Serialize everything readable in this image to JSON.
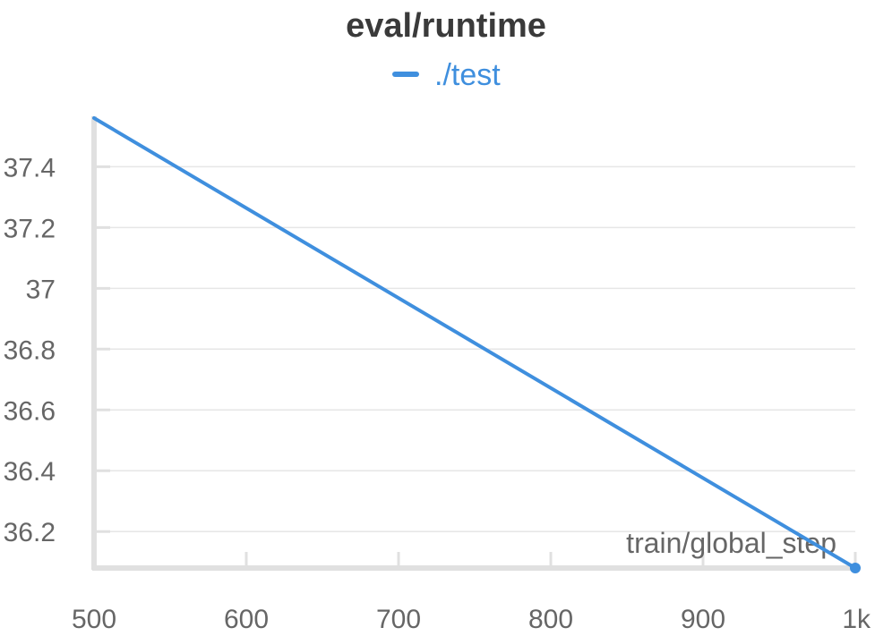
{
  "chart_data": {
    "type": "line",
    "title": "eval/runtime",
    "xlabel": "train/global_step",
    "ylabel": "",
    "xlim": [
      500,
      1000
    ],
    "ylim": [
      36.08,
      37.56
    ],
    "x_ticks": [
      500,
      600,
      700,
      800,
      900,
      1000
    ],
    "x_tick_labels": [
      "500",
      "600",
      "700",
      "800",
      "900",
      "1k"
    ],
    "y_ticks": [
      36.2,
      36.4,
      36.6,
      36.8,
      37,
      37.2,
      37.4
    ],
    "y_tick_labels": [
      "36.2",
      "36.4",
      "36.6",
      "36.8",
      "37",
      "37.2",
      "37.4"
    ],
    "grid": true,
    "legend_position": "top-center",
    "series": [
      {
        "name": "./test",
        "color": "#3f8fde",
        "x": [
          500,
          1000
        ],
        "y": [
          37.56,
          36.08
        ]
      }
    ]
  }
}
